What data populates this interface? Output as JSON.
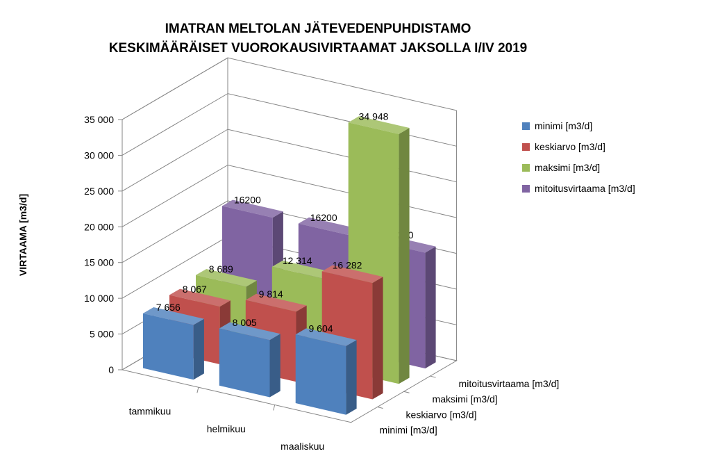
{
  "chart_data": {
    "type": "bar",
    "title": "IMATRAN MELTOLAN JÄTEVEDENPUHDISTAMO",
    "subtitle": "KESKIMÄÄRÄISET VUOROKAUSIVIRTAAMAT JAKSOLLA I/IV 2019",
    "ylabel": "VIRTAAMA [m3/d]",
    "xlabel": "",
    "ylim": [
      0,
      35000
    ],
    "yticks": [
      0,
      5000,
      10000,
      15000,
      20000,
      25000,
      30000,
      35000
    ],
    "ytick_labels": [
      "0",
      "5 000",
      "10 000",
      "15 000",
      "20 000",
      "25 000",
      "30 000",
      "35 000"
    ],
    "categories": [
      "tammikuu",
      "helmikuu",
      "maaliskuu"
    ],
    "grid": true,
    "legend_position": "right",
    "series": [
      {
        "name": "minimi [m3/d]",
        "color": "#4F81BD",
        "values": [
          7656,
          8005,
          9604
        ],
        "labels": [
          "7 656",
          "8 005",
          "9 604"
        ]
      },
      {
        "name": "keskiarvo [m3/d]",
        "color": "#C0504D",
        "values": [
          8067,
          9814,
          16282
        ],
        "labels": [
          "8 067",
          "9 814",
          "16 282"
        ]
      },
      {
        "name": "maksimi [m3/d]",
        "color": "#9BBB59",
        "values": [
          8689,
          12314,
          34948
        ],
        "labels": [
          "8 689",
          "12 314",
          "34 948"
        ]
      },
      {
        "name": "mitoitusvirtaama [m3/d]",
        "color": "#8064A2",
        "values": [
          16200,
          16200,
          16200
        ],
        "labels": [
          "16200",
          "16200",
          "16200"
        ]
      }
    ]
  }
}
